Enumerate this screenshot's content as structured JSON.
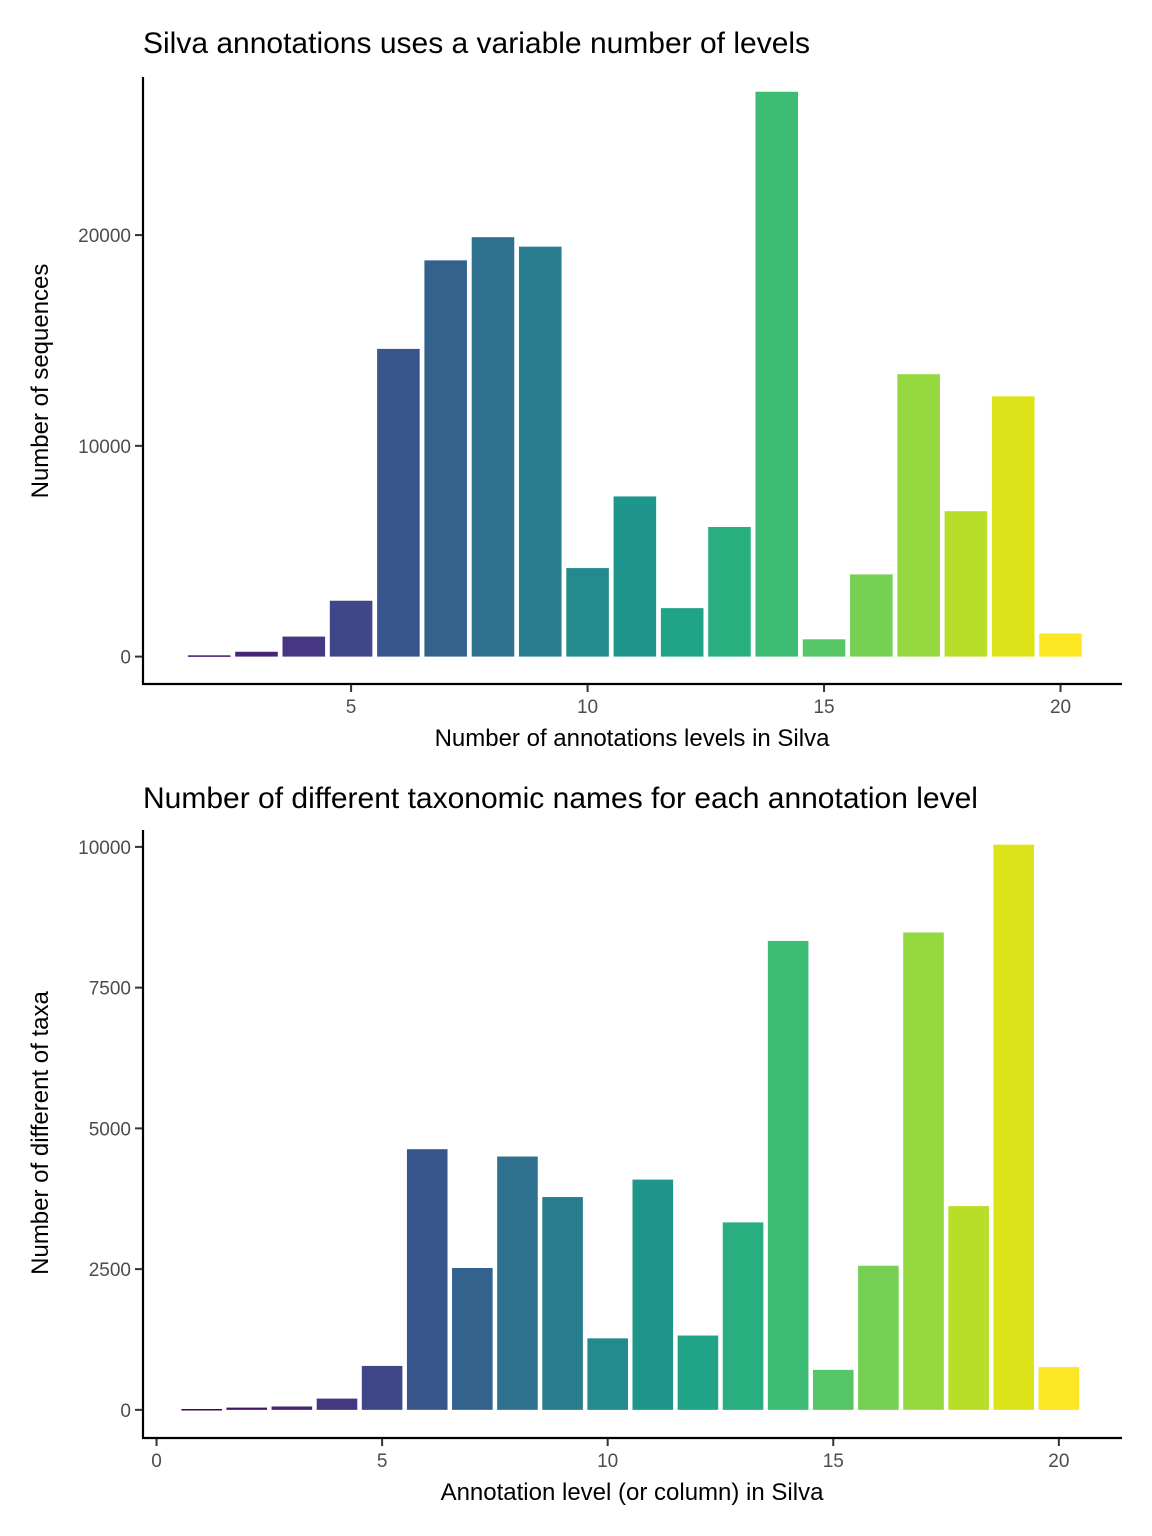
{
  "chart_data": [
    {
      "type": "bar",
      "title": "Silva annotations uses a variable number of levels",
      "xlabel": "Number of annotations levels in Silva",
      "ylabel": "Number of sequences",
      "x": [
        2,
        3,
        4,
        5,
        6,
        7,
        8,
        9,
        10,
        11,
        12,
        13,
        14,
        15,
        16,
        17,
        18,
        19,
        20
      ],
      "values": [
        60,
        230,
        950,
        2650,
        14600,
        18800,
        19900,
        19450,
        4200,
        7600,
        2300,
        6150,
        26800,
        820,
        3900,
        13400,
        6900,
        12350,
        1100
      ],
      "colors": [
        "#440154",
        "#471365",
        "#482475",
        "#453781",
        "#3f4788",
        "#39568c",
        "#33638d",
        "#2d718e",
        "#287d8e",
        "#238a8d",
        "#1f968b",
        "#20a386",
        "#29af7f",
        "#3dbc74",
        "#56c667",
        "#75d054",
        "#95d840",
        "#b8de29",
        "#dce319",
        "#fde725"
      ],
      "xlim": [
        0.6,
        21.3
      ],
      "ylim": [
        -1300,
        27500
      ],
      "xticks": [
        5,
        10,
        15,
        20
      ],
      "yticks": [
        0,
        10000,
        20000
      ],
      "grid": false,
      "legend": "none"
    },
    {
      "type": "bar",
      "title": "Number of different taxonomic names for each annotation level",
      "xlabel": "Annotation level (or column) in Silva",
      "ylabel": "Number of different of taxa",
      "x": [
        1,
        2,
        3,
        4,
        5,
        6,
        7,
        8,
        9,
        10,
        11,
        12,
        13,
        14,
        15,
        16,
        17,
        18,
        19,
        20
      ],
      "values": [
        15,
        40,
        60,
        200,
        780,
        4630,
        2520,
        4500,
        3780,
        1270,
        4090,
        1320,
        3330,
        8330,
        710,
        2560,
        8480,
        3620,
        10040,
        760
      ],
      "colors": [
        "#440154",
        "#471365",
        "#482475",
        "#453781",
        "#3f4788",
        "#39568c",
        "#33638d",
        "#2d718e",
        "#287d8e",
        "#238a8d",
        "#1f968b",
        "#20a386",
        "#29af7f",
        "#3dbc74",
        "#56c667",
        "#75d054",
        "#95d840",
        "#b8de29",
        "#dce319",
        "#fde725"
      ],
      "xlim": [
        -0.3,
        21.4
      ],
      "ylim": [
        -500,
        10300
      ],
      "xticks": [
        0,
        5,
        10,
        15,
        20
      ],
      "yticks": [
        0,
        2500,
        5000,
        7500,
        10000
      ],
      "grid": false,
      "legend": "none"
    }
  ]
}
